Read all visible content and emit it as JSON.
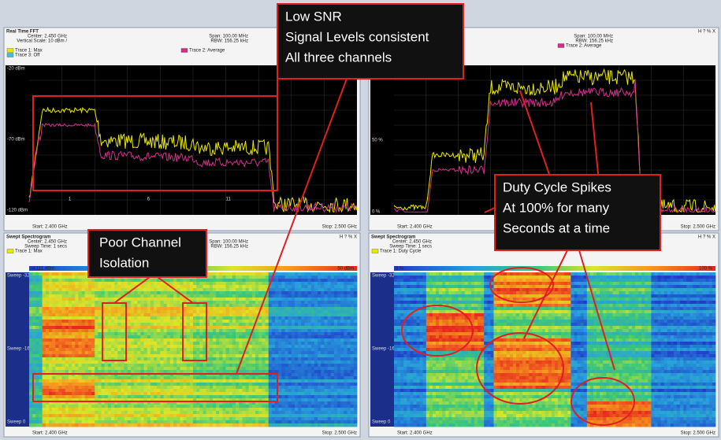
{
  "panels": [
    {
      "title": "Real Time FFT",
      "icons": "",
      "center": "Center: 2.450 GHz",
      "vscale": "Vertical Scale: 10 dBm /",
      "sweep": "",
      "span": "Span: 100.00 MHz",
      "rbw": "RBW: 156.25 kHz",
      "legend": [
        "Trace 1: Max",
        "Trace 3: Off",
        "Trace 2: Average"
      ],
      "y_labels": [
        "-20 dBm",
        "-70 dBm",
        "-120 dBm"
      ],
      "channels": [
        "1",
        "6",
        "11"
      ],
      "start": "Start: 2.400 GHz",
      "stop": "Stop: 2.500 GHz"
    },
    {
      "title": "",
      "icons": "H ? % X",
      "center": "",
      "vscale": "",
      "sweep": "",
      "span": "Span: 100.00 MHz",
      "rbw": "RBW: 156.25 kHz",
      "legend": [
        "Trace 2: Average"
      ],
      "y_labels": [
        "50 %",
        "0 %"
      ],
      "channels": [],
      "start": "Start: 2.400 GHz",
      "stop": "Stop: 2.500 GHz"
    },
    {
      "title": "Swept Spectrogram",
      "icons": "H ? % X",
      "center": "Center: 2.450 GHz",
      "vscale": "",
      "sweep": "Sweep Time: 1 secs",
      "span": "Span: 100.00 MHz",
      "rbw": "RBW: 156.25 kHz",
      "legend": [
        "Trace 1: Max"
      ],
      "scale_low": "-4.111 dBm",
      "scale_high": "50 dBm",
      "y_labels": [
        "Sweep -322",
        "Sweep -161",
        "Sweep 0"
      ],
      "channels": [],
      "start": "Start: 2.400 GHz",
      "stop": "Stop: 2.500 GHz"
    },
    {
      "title": "Swept Spectrogram",
      "icons": "H ? % X",
      "center": "Center: 2.450 GHz",
      "vscale": "",
      "sweep": "Sweep Time: 1 secs",
      "span": "",
      "rbw": "RBW: 156.25 kHz",
      "legend": [
        "Trace 1: Duty Cycle"
      ],
      "scale_low": "0 %",
      "scale_high": "100 %",
      "y_labels": [
        "Sweep -322",
        "Sweep -161",
        "Sweep 0"
      ],
      "channels": [],
      "start": "Start: 2.400 GHz",
      "stop": "Stop: 2.500 GHz"
    }
  ],
  "callouts": [
    {
      "lines": [
        "Low SNR",
        "Signal Levels consistent",
        "All three channels"
      ]
    },
    {
      "lines": [
        "Poor Channel",
        "Isolation"
      ]
    },
    {
      "lines": [
        "Duty Cycle Spikes",
        "At 100% for many",
        "Seconds at a time"
      ]
    }
  ]
}
